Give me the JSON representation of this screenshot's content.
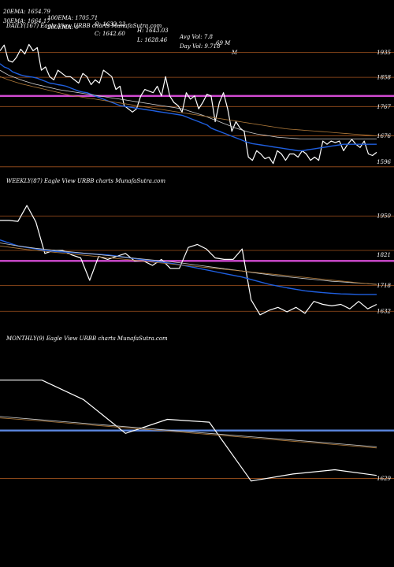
{
  "header": {
    "line1": [
      "20EMA: 1654.79",
      "100EMA: 1705.71",
      "O: 1632.23",
      "H: 1643.03",
      "Avg Vol: 7.8",
      "69 M"
    ],
    "line2": [
      "30EMA: 1664.17",
      "200EMA: 0",
      "C: 1642.60",
      "L: 1628.46",
      "Day Vol: 9.718",
      "M"
    ]
  },
  "chart_data": [
    {
      "type": "line",
      "title": "DAILY(167) Eagle  View  URBB charts MunafaSutra.com",
      "ylim": [
        1560,
        2000
      ],
      "yticks": [
        1935,
        1858,
        1767,
        1676,
        1596
      ],
      "hlines": [
        {
          "value": 1935,
          "color": "#a0521e"
        },
        {
          "value": 1858,
          "color": "#a0521e"
        },
        {
          "value": 1800,
          "color": "#d24bd2"
        },
        {
          "value": 1767,
          "color": "#a0521e"
        },
        {
          "value": 1676,
          "color": "#a0521e"
        },
        {
          "value": 1580,
          "color": "#a0521e"
        }
      ],
      "series": [
        {
          "color": "#ffffff",
          "width": 1.2,
          "values": [
            1940,
            1958,
            1910,
            1905,
            1920,
            1945,
            1930,
            1960,
            1940,
            1950,
            1880,
            1890,
            1860,
            1850,
            1880,
            1870,
            1860,
            1860,
            1850,
            1840,
            1870,
            1860,
            1835,
            1850,
            1840,
            1880,
            1870,
            1860,
            1820,
            1830,
            1770,
            1760,
            1750,
            1760,
            1800,
            1820,
            1815,
            1810,
            1830,
            1800,
            1860,
            1800,
            1780,
            1770,
            1750,
            1810,
            1790,
            1800,
            1760,
            1780,
            1805,
            1800,
            1720,
            1780,
            1810,
            1760,
            1690,
            1720,
            1700,
            1690,
            1610,
            1600,
            1630,
            1620,
            1605,
            1610,
            1590,
            1630,
            1620,
            1600,
            1620,
            1620,
            1610,
            1630,
            1620,
            1600,
            1610,
            1600,
            1660,
            1650,
            1660,
            1655,
            1660,
            1630,
            1650,
            1665,
            1650,
            1640,
            1660,
            1620,
            1615,
            1625
          ]
        },
        {
          "color": "#1f5fe0",
          "width": 1.4,
          "values": [
            1900,
            1890,
            1885,
            1875,
            1870,
            1865,
            1862,
            1860,
            1858,
            1855,
            1850,
            1845,
            1840,
            1838,
            1835,
            1833,
            1830,
            1825,
            1820,
            1815,
            1812,
            1810,
            1805,
            1800,
            1795,
            1790,
            1785,
            1780,
            1775,
            1770,
            1768,
            1766,
            1764,
            1762,
            1760,
            1758,
            1756,
            1754,
            1752,
            1750,
            1748,
            1746,
            1744,
            1742,
            1740,
            1735,
            1730,
            1725,
            1720,
            1715,
            1710,
            1700,
            1695,
            1690,
            1685,
            1680,
            1675,
            1670,
            1665,
            1660,
            1655,
            1652,
            1650,
            1648,
            1646,
            1644,
            1642,
            1640,
            1638,
            1636,
            1634,
            1632,
            1630,
            1630,
            1632,
            1634,
            1636,
            1638,
            1640,
            1642,
            1644,
            1646,
            1648,
            1650,
            1650,
            1650,
            1650,
            1650,
            1650,
            1650,
            1650,
            1650
          ]
        },
        {
          "color": "#cfcfcf",
          "width": 0.8,
          "values": [
            1880,
            1872,
            1865,
            1860,
            1855,
            1850,
            1846,
            1842,
            1838,
            1835,
            1832,
            1829,
            1826,
            1823,
            1820,
            1818,
            1816,
            1814,
            1812,
            1810,
            1808,
            1806,
            1804,
            1802,
            1800,
            1798,
            1796,
            1794,
            1792,
            1790,
            1788,
            1786,
            1784,
            1782,
            1780,
            1778,
            1776,
            1774,
            1772,
            1770,
            1768,
            1766,
            1764,
            1762,
            1760,
            1756,
            1752,
            1748,
            1744,
            1740,
            1735,
            1730,
            1725,
            1720,
            1715,
            1710,
            1705,
            1700,
            1696,
            1692,
            1688,
            1685,
            1682,
            1680,
            1678,
            1676,
            1674,
            1672,
            1671,
            1670,
            1669,
            1668,
            1667,
            1666,
            1666,
            1666,
            1666,
            1666,
            1666,
            1666,
            1666,
            1666,
            1666,
            1666,
            1666,
            1666,
            1666,
            1666,
            1666,
            1666,
            1666,
            1666
          ]
        },
        {
          "color": "#b07a3a",
          "width": 0.8,
          "values": [
            1860,
            1855,
            1850,
            1846,
            1842,
            1838,
            1835,
            1832,
            1829,
            1826,
            1823,
            1820,
            1817,
            1814,
            1811,
            1808,
            1805,
            1802,
            1800,
            1798,
            1796,
            1794,
            1792,
            1790,
            1788,
            1786,
            1784,
            1782,
            1780,
            1778,
            1776,
            1774,
            1772,
            1770,
            1768,
            1766,
            1764,
            1762,
            1760,
            1758,
            1756,
            1754,
            1752,
            1750,
            1748,
            1746,
            1744,
            1742,
            1740,
            1738,
            1736,
            1734,
            1732,
            1730,
            1728,
            1726,
            1724,
            1722,
            1720,
            1718,
            1716,
            1714,
            1712,
            1710,
            1708,
            1706,
            1704,
            1702,
            1700,
            1698,
            1697,
            1696,
            1695,
            1694,
            1693,
            1692,
            1691,
            1690,
            1689,
            1688,
            1687,
            1686,
            1685,
            1684,
            1683,
            1682,
            1681,
            1680,
            1679,
            1678,
            1677,
            1676
          ]
        }
      ]
    },
    {
      "type": "line",
      "title": "WEEKLY(87) Eagle  View  URBB charts MunafaSutra.com",
      "ylim": [
        1580,
        2040
      ],
      "yticks": [
        1950,
        1821,
        1718,
        1632
      ],
      "hlines": [
        {
          "value": 1950,
          "color": "#a0521e"
        },
        {
          "value": 1835,
          "color": "#a0521e"
        },
        {
          "value": 1800,
          "color": "#d24bd2"
        },
        {
          "value": 1718,
          "color": "#a0521e"
        },
        {
          "value": 1632,
          "color": "#a0521e"
        }
      ],
      "series": [
        {
          "color": "#ffffff",
          "width": 1.2,
          "values": [
            1935,
            1935,
            1932,
            1985,
            1930,
            1825,
            1835,
            1835,
            1820,
            1810,
            1735,
            1815,
            1805,
            1815,
            1825,
            1800,
            1800,
            1785,
            1805,
            1775,
            1775,
            1845,
            1855,
            1840,
            1810,
            1805,
            1805,
            1840,
            1670,
            1620,
            1635,
            1645,
            1630,
            1645,
            1625,
            1665,
            1655,
            1650,
            1655,
            1640,
            1665,
            1640,
            1655
          ]
        },
        {
          "color": "#1f5fe0",
          "width": 1.4,
          "values": [
            1870,
            1860,
            1850,
            1845,
            1840,
            1835,
            1832,
            1830,
            1828,
            1826,
            1824,
            1822,
            1820,
            1816,
            1812,
            1808,
            1804,
            1800,
            1796,
            1792,
            1788,
            1782,
            1776,
            1770,
            1764,
            1758,
            1752,
            1746,
            1738,
            1730,
            1722,
            1716,
            1710,
            1705,
            1700,
            1697,
            1694,
            1692,
            1690,
            1689,
            1688,
            1688,
            1688
          ]
        },
        {
          "color": "#cfcfcf",
          "width": 0.8,
          "values": [
            1860,
            1855,
            1850,
            1846,
            1842,
            1839,
            1836,
            1833,
            1830,
            1827,
            1824,
            1821,
            1818,
            1815,
            1812,
            1809,
            1806,
            1803,
            1800,
            1797,
            1794,
            1790,
            1786,
            1782,
            1778,
            1774,
            1770,
            1766,
            1762,
            1758,
            1754,
            1750,
            1747,
            1744,
            1741,
            1738,
            1735,
            1732,
            1730,
            1728,
            1726,
            1724,
            1722
          ]
        },
        {
          "color": "#b07a3a",
          "width": 0.8,
          "values": [
            1850,
            1846,
            1842,
            1838,
            1835,
            1832,
            1829,
            1826,
            1823,
            1820,
            1817,
            1814,
            1811,
            1808,
            1805,
            1802,
            1799,
            1796,
            1793,
            1790,
            1787,
            1784,
            1781,
            1778,
            1775,
            1772,
            1769,
            1766,
            1763,
            1760,
            1757,
            1754,
            1751,
            1748,
            1745,
            1742,
            1739,
            1736,
            1733,
            1730,
            1727,
            1724,
            1721
          ]
        }
      ]
    },
    {
      "type": "line",
      "title": "MONTHLY(9) Eagle  View  URBB charts MunafaSutra.com",
      "ylim": [
        1580,
        2100
      ],
      "yticks": [
        1629
      ],
      "hlines": [
        {
          "value": 1800,
          "color": "#5b87e0"
        },
        {
          "value": 1629,
          "color": "#a0521e"
        }
      ],
      "series": [
        {
          "color": "#ffffff",
          "width": 1.2,
          "values": [
            1980,
            1980,
            1910,
            1790,
            1840,
            1830,
            1620,
            1645,
            1660,
            1640
          ]
        },
        {
          "color": "#cfcfcf",
          "width": 0.8,
          "values": [
            1850,
            1838,
            1826,
            1814,
            1802,
            1790,
            1778,
            1766,
            1754,
            1742
          ]
        },
        {
          "color": "#b07a3a",
          "width": 0.8,
          "values": [
            1845,
            1834,
            1822,
            1810,
            1798,
            1786,
            1774,
            1762,
            1750,
            1738
          ]
        }
      ]
    }
  ]
}
